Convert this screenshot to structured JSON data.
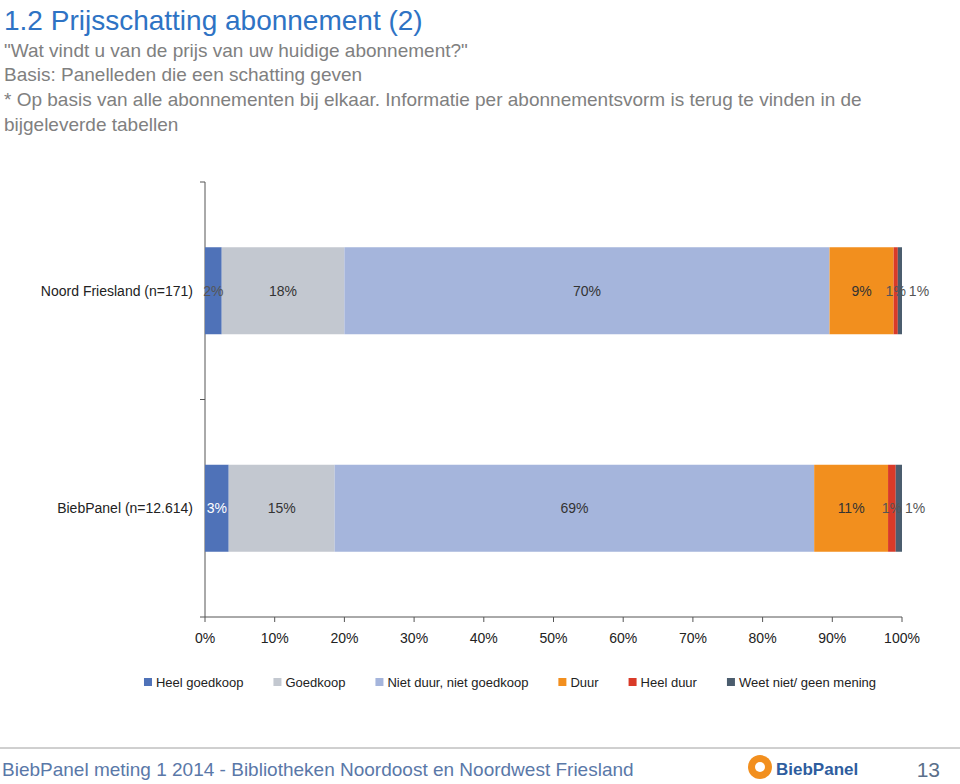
{
  "chart_data": {
    "type": "bar",
    "title": "1.2 Prijsschatting abonnement (2)",
    "subtitle": [
      "\"Wat vindt u van de prijs van uw huidige abonnement?\"",
      "Basis: Panelleden die een schatting geven",
      "* Op basis van alle abonnementen bij elkaar. Informatie per abonnementsvorm is terug te vinden in de",
      "bijgeleverde tabellen"
    ],
    "categories": [
      "Noord Friesland (n=171)",
      "BiebPanel (n=12.614)"
    ],
    "series": [
      {
        "name": "Heel goedkoop",
        "color": "#4f72b8",
        "values": [
          2.4,
          3.4
        ],
        "value_labels": [
          "2%",
          "3%"
        ]
      },
      {
        "name": "Goedkoop",
        "color": "#c3c8d0",
        "values": [
          17.6,
          15.2
        ],
        "value_labels": [
          "18%",
          "15%"
        ]
      },
      {
        "name": "Niet duur, niet goedkoop",
        "color": "#a5b5dc",
        "values": [
          69.6,
          68.8
        ],
        "value_labels": [
          "70%",
          "69%"
        ]
      },
      {
        "name": "Duur",
        "color": "#f28f1e",
        "values": [
          9.2,
          10.6
        ],
        "value_labels": [
          "9%",
          "11%"
        ]
      },
      {
        "name": "Heel duur",
        "color": "#d93a28",
        "values": [
          0.6,
          1.1
        ],
        "value_labels": [
          "1%",
          "1%"
        ]
      },
      {
        "name": "Weet niet/ geen mening",
        "color": "#4b5d6e",
        "values": [
          0.6,
          0.9
        ],
        "value_labels": [
          "1%",
          "1%"
        ]
      }
    ],
    "xlim": [
      0,
      100
    ],
    "xticks": [
      {
        "value": 0,
        "label": "0%"
      },
      {
        "value": 10,
        "label": "10%"
      },
      {
        "value": 20,
        "label": "20%"
      },
      {
        "value": 30,
        "label": "30%"
      },
      {
        "value": 40,
        "label": "40%"
      },
      {
        "value": 50,
        "label": "50%"
      },
      {
        "value": 60,
        "label": "60%"
      },
      {
        "value": 70,
        "label": "70%"
      },
      {
        "value": 80,
        "label": "80%"
      },
      {
        "value": 90,
        "label": "90%"
      },
      {
        "value": 100,
        "label": "100%"
      }
    ],
    "orientation": "horizontal",
    "stacked": true,
    "data_labels": true,
    "legend": "bottom",
    "grid": false
  },
  "footer": {
    "text": "BiebPanel meting 1 2014 - Bibliotheken Noordoost en Noordwest Friesland",
    "logo": "BiebPanel",
    "page": "13"
  }
}
